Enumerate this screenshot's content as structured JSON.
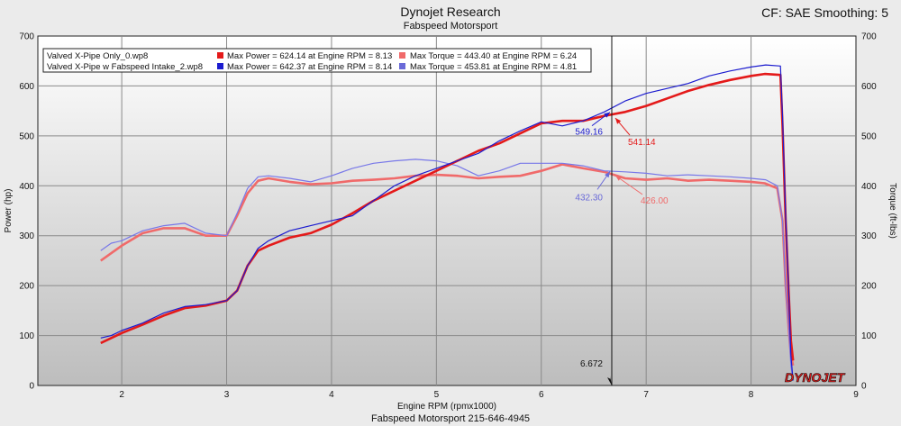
{
  "header": {
    "title": "Dynojet Research",
    "subtitle": "Fabspeed Motorsport",
    "cf_text": "CF: SAE Smoothing: 5"
  },
  "footer": {
    "text": "Fabspeed Motorsport 215-646-4945"
  },
  "logo": {
    "text": "DYNOJET"
  },
  "chart_data": {
    "type": "line",
    "xlabel": "Engine RPM (rpmx1000)",
    "ylabel_left": "Power (hp)",
    "ylabel_right": "Torque (ft-lbs)",
    "xlim": [
      1.2,
      9
    ],
    "ylim": [
      0,
      700
    ],
    "xticks": [
      2,
      3,
      4,
      5,
      6,
      7,
      8,
      9
    ],
    "yticks": [
      0,
      100,
      200,
      300,
      400,
      500,
      600,
      700
    ],
    "grid": true,
    "legend_position": "top-left",
    "cursor": {
      "x": 6.672,
      "label": "6.672"
    },
    "legend": {
      "files": [
        "Valved X-Pipe Only_0.wp8",
        "Valved X-Pipe w Fabspeed Intake_2.wp8"
      ],
      "power": [
        "Max Power = 624.14 at Engine RPM = 8.13",
        "Max Power = 642.37 at Engine RPM = 8.14"
      ],
      "torque": [
        "Max Torque = 443.40 at Engine RPM = 6.24",
        "Max Torque = 453.81 at Engine RPM = 4.81"
      ]
    },
    "cursor_values": {
      "power_red": "541.14",
      "power_blue": "549.16",
      "torque_red": "426.00",
      "torque_blue": "432.30"
    },
    "series": [
      {
        "name": "Valved X-Pipe Only_0.wp8",
        "quantity": "power",
        "color": "#e41a1a",
        "width": 2.6,
        "x": [
          1.8,
          1.9,
          2.0,
          2.2,
          2.4,
          2.6,
          2.8,
          3.0,
          3.1,
          3.2,
          3.3,
          3.4,
          3.6,
          3.8,
          4.0,
          4.2,
          4.4,
          4.6,
          4.8,
          5.0,
          5.2,
          5.4,
          5.6,
          5.8,
          6.0,
          6.2,
          6.4,
          6.6,
          6.8,
          7.0,
          7.2,
          7.4,
          7.6,
          7.8,
          8.0,
          8.13,
          8.28,
          8.3,
          8.33,
          8.36,
          8.38,
          8.4
        ],
        "y": [
          85,
          95,
          105,
          122,
          140,
          155,
          160,
          170,
          190,
          240,
          270,
          280,
          296,
          305,
          322,
          345,
          370,
          390,
          410,
          430,
          450,
          470,
          485,
          505,
          525,
          530,
          530,
          540,
          548,
          560,
          575,
          590,
          602,
          612,
          620,
          624,
          622,
          520,
          330,
          180,
          90,
          50
        ]
      },
      {
        "name": "Valved X-Pipe w Fabspeed Intake_2.wp8",
        "quantity": "power",
        "color": "#1c1ccf",
        "width": 1.2,
        "x": [
          1.8,
          1.9,
          2.0,
          2.2,
          2.4,
          2.6,
          2.8,
          3.0,
          3.1,
          3.2,
          3.3,
          3.4,
          3.6,
          3.8,
          4.0,
          4.2,
          4.4,
          4.6,
          4.8,
          5.0,
          5.2,
          5.4,
          5.6,
          5.8,
          6.0,
          6.2,
          6.4,
          6.6,
          6.8,
          7.0,
          7.2,
          7.4,
          7.6,
          7.8,
          8.0,
          8.14,
          8.28,
          8.3,
          8.33,
          8.36,
          8.38,
          8.4
        ],
        "y": [
          95,
          100,
          110,
          125,
          145,
          158,
          162,
          170,
          190,
          240,
          275,
          290,
          310,
          320,
          330,
          340,
          370,
          400,
          420,
          435,
          450,
          465,
          490,
          510,
          528,
          520,
          530,
          548,
          570,
          585,
          595,
          605,
          620,
          630,
          638,
          642,
          640,
          540,
          340,
          180,
          60,
          10
        ]
      },
      {
        "name": "Valved X-Pipe Only_0.wp8",
        "quantity": "torque",
        "color": "#f06a6a",
        "width": 2.6,
        "x": [
          1.8,
          1.9,
          2.0,
          2.2,
          2.4,
          2.6,
          2.8,
          3.0,
          3.1,
          3.2,
          3.3,
          3.4,
          3.6,
          3.8,
          4.0,
          4.2,
          4.4,
          4.6,
          4.8,
          5.0,
          5.2,
          5.4,
          5.6,
          5.8,
          6.0,
          6.2,
          6.4,
          6.6,
          6.8,
          7.0,
          7.2,
          7.4,
          7.6,
          7.8,
          8.0,
          8.13,
          8.25,
          8.3,
          8.33,
          8.36,
          8.38,
          8.4
        ],
        "y": [
          250,
          265,
          280,
          305,
          315,
          315,
          300,
          300,
          340,
          385,
          410,
          415,
          408,
          403,
          405,
          410,
          412,
          415,
          420,
          422,
          420,
          415,
          418,
          420,
          430,
          443,
          435,
          428,
          415,
          412,
          415,
          410,
          412,
          410,
          408,
          405,
          395,
          330,
          200,
          110,
          60,
          40
        ]
      },
      {
        "name": "Valved X-Pipe w Fabspeed Intake_2.wp8",
        "quantity": "torque",
        "color": "#7878e8",
        "width": 1.2,
        "x": [
          1.8,
          1.9,
          2.0,
          2.2,
          2.4,
          2.6,
          2.8,
          3.0,
          3.1,
          3.2,
          3.3,
          3.4,
          3.6,
          3.8,
          4.0,
          4.2,
          4.4,
          4.6,
          4.8,
          5.0,
          5.2,
          5.4,
          5.6,
          5.8,
          6.0,
          6.2,
          6.4,
          6.6,
          6.8,
          7.0,
          7.2,
          7.4,
          7.6,
          7.8,
          8.0,
          8.14,
          8.25,
          8.3,
          8.33,
          8.36,
          8.38,
          8.4
        ],
        "y": [
          270,
          285,
          290,
          310,
          320,
          325,
          305,
          300,
          345,
          395,
          418,
          420,
          415,
          408,
          420,
          435,
          445,
          450,
          453,
          450,
          440,
          420,
          430,
          445,
          445,
          445,
          440,
          430,
          428,
          425,
          420,
          422,
          420,
          418,
          415,
          412,
          400,
          330,
          200,
          110,
          40,
          10
        ]
      }
    ]
  }
}
